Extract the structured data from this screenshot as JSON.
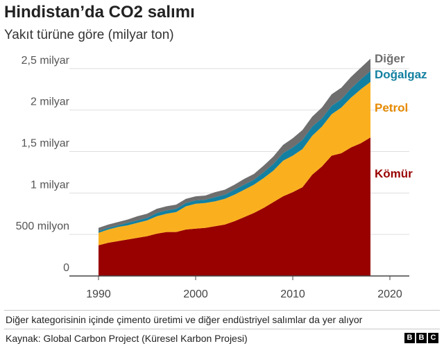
{
  "header": {
    "title": "Hindistan’da CO2 salımı",
    "subtitle": "Yakıt türüne göre (milyar ton)"
  },
  "footer": {
    "note": "Diğer kategorisinin içinde çimento üretimi ve diğer endüstriyel salımlar da yer alıyor",
    "source": "Kaynak: Global Carbon Project (Küresel Karbon Projesi)",
    "logo_letters": [
      "B",
      "B",
      "C"
    ]
  },
  "chart_data": {
    "type": "area",
    "stacked": true,
    "title": "Hindistan’da CO2 salımı",
    "subtitle": "Yakıt türüne göre (milyar ton)",
    "xlim": [
      1987,
      2022
    ],
    "ylim": [
      0,
      2.7
    ],
    "x": [
      1990,
      1991,
      1992,
      1993,
      1994,
      1995,
      1996,
      1997,
      1998,
      1999,
      2000,
      2001,
      2002,
      2003,
      2004,
      2005,
      2006,
      2007,
      2008,
      2009,
      2010,
      2011,
      2012,
      2013,
      2014,
      2015,
      2016,
      2017,
      2018
    ],
    "x_ticks": [
      {
        "value": 1990,
        "label": "1990"
      },
      {
        "value": 2000,
        "label": "2000"
      },
      {
        "value": 2010,
        "label": "2010"
      },
      {
        "value": 2020,
        "label": "2020"
      }
    ],
    "y_ticks": [
      {
        "value": 0,
        "label": "0"
      },
      {
        "value": 0.5,
        "label": "500 milyon"
      },
      {
        "value": 1,
        "label": "1 milyar"
      },
      {
        "value": 1.5,
        "label": "1,5 milyar"
      },
      {
        "value": 2,
        "label": "2 milyar"
      },
      {
        "value": 2.5,
        "label": "2,5 milyar"
      }
    ],
    "grid": true,
    "series": [
      {
        "name": "Kömür",
        "color": "#990000",
        "values": [
          0.37,
          0.4,
          0.42,
          0.44,
          0.46,
          0.48,
          0.51,
          0.53,
          0.53,
          0.56,
          0.57,
          0.58,
          0.6,
          0.62,
          0.66,
          0.71,
          0.76,
          0.82,
          0.89,
          0.96,
          1.01,
          1.07,
          1.22,
          1.32,
          1.45,
          1.48,
          1.55,
          1.6,
          1.67
        ]
      },
      {
        "name": "Petrol",
        "color": "#fab01e",
        "values": [
          0.15,
          0.16,
          0.17,
          0.17,
          0.18,
          0.19,
          0.21,
          0.22,
          0.24,
          0.28,
          0.3,
          0.3,
          0.3,
          0.31,
          0.32,
          0.33,
          0.34,
          0.36,
          0.38,
          0.43,
          0.44,
          0.46,
          0.47,
          0.48,
          0.5,
          0.55,
          0.6,
          0.65,
          0.67
        ]
      },
      {
        "name": "Doğalgaz",
        "color": "#1380a1",
        "values": [
          0.02,
          0.02,
          0.02,
          0.03,
          0.03,
          0.03,
          0.04,
          0.04,
          0.04,
          0.04,
          0.04,
          0.04,
          0.05,
          0.05,
          0.06,
          0.06,
          0.06,
          0.07,
          0.08,
          0.09,
          0.1,
          0.11,
          0.11,
          0.1,
          0.1,
          0.1,
          0.11,
          0.12,
          0.13
        ]
      },
      {
        "name": "Diğer",
        "color": "#6e6e6e",
        "values": [
          0.04,
          0.04,
          0.04,
          0.04,
          0.05,
          0.05,
          0.05,
          0.05,
          0.05,
          0.05,
          0.05,
          0.05,
          0.06,
          0.06,
          0.06,
          0.07,
          0.07,
          0.08,
          0.09,
          0.1,
          0.11,
          0.12,
          0.12,
          0.13,
          0.14,
          0.14,
          0.14,
          0.14,
          0.15
        ]
      }
    ]
  }
}
